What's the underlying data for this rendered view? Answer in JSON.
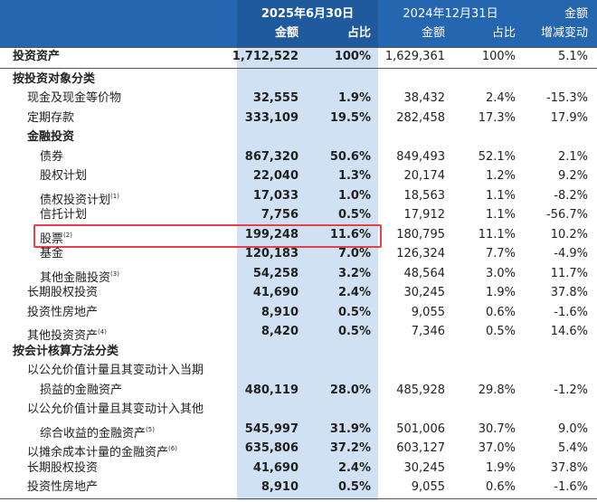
{
  "header": {
    "date_2025": "2025年6月30日",
    "date_2024": "2024年12月31日",
    "cols": [
      "金额",
      "占比",
      "金额",
      "占比"
    ],
    "change_label": [
      "金额",
      "增减变动"
    ]
  },
  "table": {
    "rows": [
      {
        "label": "投资资产",
        "values": [
          "1,712,522",
          "100%",
          "1,629,361",
          "100%",
          "5.1%"
        ]
      },
      {
        "label": "按投资对象分类"
      },
      {
        "label": "现金及现金等价物",
        "values": [
          "32,555",
          "1.9%",
          "38,432",
          "2.4%",
          "-15.3%"
        ]
      },
      {
        "label": "定期存款",
        "values": [
          "333,109",
          "19.5%",
          "282,458",
          "17.3%",
          "17.9%"
        ]
      },
      {
        "label": "金融投资"
      },
      {
        "label": "债券",
        "values": [
          "867,320",
          "50.6%",
          "849,493",
          "52.1%",
          "2.1%"
        ]
      },
      {
        "label": "股权计划",
        "values": [
          "22,040",
          "1.3%",
          "20,174",
          "1.2%",
          "9.2%"
        ]
      },
      {
        "label": "债权投资计划",
        "note": "(1)",
        "values": [
          "17,033",
          "1.0%",
          "18,563",
          "1.1%",
          "-8.2%"
        ]
      },
      {
        "label": "信托计划",
        "values": [
          "7,756",
          "0.5%",
          "17,912",
          "1.1%",
          "-56.7%"
        ]
      },
      {
        "label": "股票",
        "note": "(2)",
        "values": [
          "199,248",
          "11.6%",
          "180,795",
          "11.1%",
          "10.2%"
        ]
      },
      {
        "label": "基金",
        "values": [
          "120,183",
          "7.0%",
          "126,324",
          "7.7%",
          "-4.9%"
        ]
      },
      {
        "label": "其他金融投资",
        "note": "(3)",
        "values": [
          "54,258",
          "3.2%",
          "48,564",
          "3.0%",
          "11.7%"
        ]
      },
      {
        "label": "长期股权投资",
        "values": [
          "41,690",
          "2.4%",
          "30,245",
          "1.9%",
          "37.8%"
        ]
      },
      {
        "label": "投资性房地产",
        "values": [
          "8,910",
          "0.5%",
          "9,055",
          "0.6%",
          "-1.6%"
        ]
      },
      {
        "label": "其他投资资产",
        "note": "(4)",
        "values": [
          "8,420",
          "0.5%",
          "7,346",
          "0.5%",
          "14.6%"
        ]
      },
      {
        "label": "按会计核算方法分类"
      },
      {
        "label_lines": [
          "以公允价值计量且其变动计入当期",
          "损益的金融资产"
        ],
        "values": [
          "480,119",
          "28.0%",
          "485,928",
          "29.8%",
          "-1.2%"
        ]
      },
      {
        "label_lines": [
          "以公允价值计量且其变动计入其他",
          "综合收益的金融资产"
        ],
        "note": "(5)",
        "values": [
          "545,997",
          "31.9%",
          "501,006",
          "30.7%",
          "9.0%"
        ]
      },
      {
        "label": "以摊余成本计量的金融资产",
        "note": "(6)",
        "values": [
          "635,806",
          "37.2%",
          "603,127",
          "37.0%",
          "5.4%"
        ]
      },
      {
        "label": "长期股权投资",
        "values": [
          "41,690",
          "2.4%",
          "30,245",
          "1.9%",
          "37.8%"
        ]
      },
      {
        "label": "投资性房地产",
        "values": [
          "8,910",
          "0.5%",
          "9,055",
          "0.6%",
          "-1.6%"
        ]
      }
    ]
  }
}
